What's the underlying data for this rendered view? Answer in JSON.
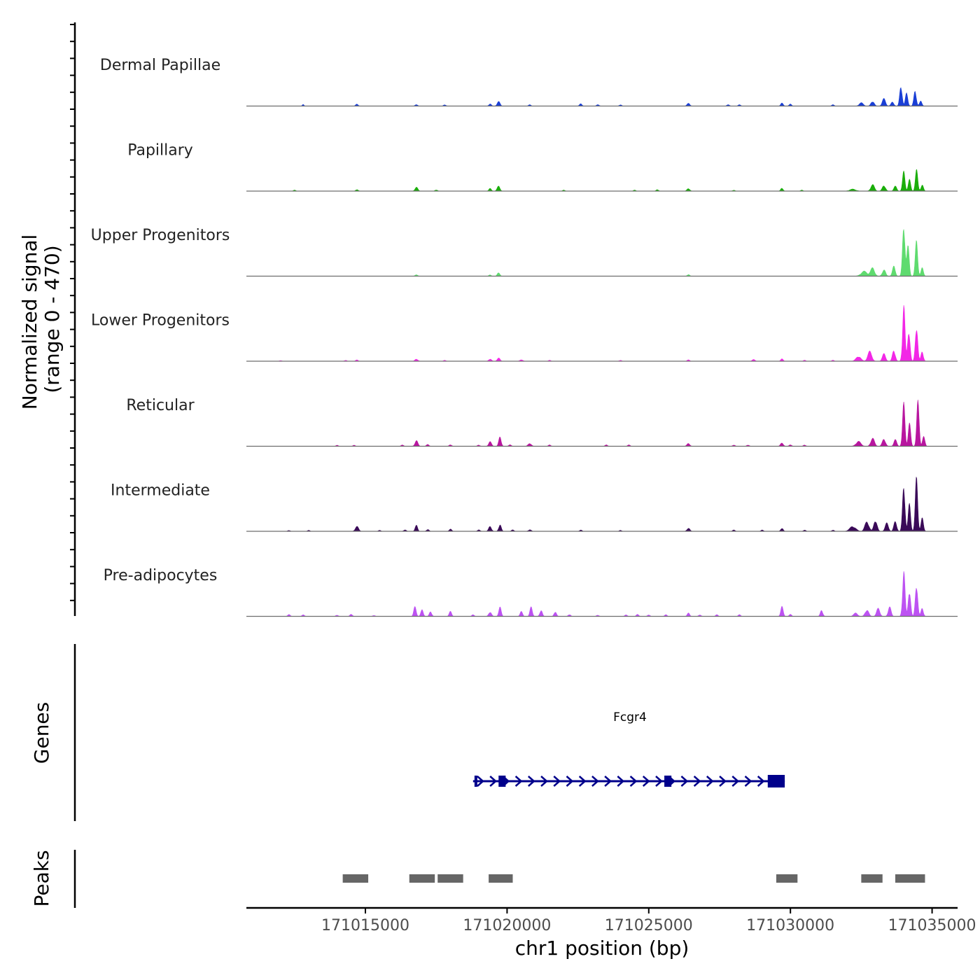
{
  "chart_data": {
    "type": "area",
    "title": "",
    "ylabel_line1": "Normalized signal",
    "ylabel_line2": "(range 0 - 470)",
    "xlabel": "chr1 position (bp)",
    "ylim": [
      0,
      470
    ],
    "xlim": [
      171010800,
      171035900
    ],
    "x_ticks": [
      171015000,
      171020000,
      171025000,
      171030000,
      171035000
    ],
    "x_tick_labels": [
      "171015000",
      "171020000",
      "171025000",
      "171030000",
      "171035000"
    ],
    "series": [
      {
        "name": "Dermal Papillae",
        "color": "#1a3fd6",
        "peaks": [
          [
            171012800,
            10,
            40
          ],
          [
            171014700,
            12,
            60
          ],
          [
            171016800,
            10,
            60
          ],
          [
            171017800,
            8,
            60
          ],
          [
            171019400,
            14,
            60
          ],
          [
            171019700,
            28,
            70
          ],
          [
            171020800,
            8,
            60
          ],
          [
            171022600,
            14,
            60
          ],
          [
            171023200,
            10,
            60
          ],
          [
            171024000,
            8,
            60
          ],
          [
            171026400,
            16,
            70
          ],
          [
            171027800,
            10,
            60
          ],
          [
            171028200,
            8,
            60
          ],
          [
            171029700,
            18,
            60
          ],
          [
            171030000,
            12,
            60
          ],
          [
            171031500,
            8,
            60
          ],
          [
            171032500,
            20,
            100
          ],
          [
            171032900,
            30,
            80
          ],
          [
            171033300,
            45,
            80
          ],
          [
            171033600,
            25,
            70
          ],
          [
            171033900,
            130,
            60
          ],
          [
            171034100,
            80,
            60
          ],
          [
            171034400,
            100,
            60
          ],
          [
            171034600,
            30,
            60
          ]
        ]
      },
      {
        "name": "Papillary",
        "color": "#1aad0a",
        "peaks": [
          [
            171012500,
            6,
            60
          ],
          [
            171014700,
            10,
            60
          ],
          [
            171016800,
            24,
            70
          ],
          [
            171017500,
            8,
            60
          ],
          [
            171019400,
            16,
            60
          ],
          [
            171019700,
            30,
            70
          ],
          [
            171022000,
            6,
            60
          ],
          [
            171024500,
            6,
            60
          ],
          [
            171025300,
            8,
            60
          ],
          [
            171026400,
            16,
            70
          ],
          [
            171028000,
            6,
            60
          ],
          [
            171029700,
            18,
            60
          ],
          [
            171030400,
            6,
            60
          ],
          [
            171032200,
            12,
            150
          ],
          [
            171032900,
            40,
            90
          ],
          [
            171033300,
            35,
            80
          ],
          [
            171033700,
            30,
            70
          ],
          [
            171034000,
            120,
            60
          ],
          [
            171034200,
            70,
            60
          ],
          [
            171034450,
            130,
            60
          ],
          [
            171034650,
            40,
            60
          ]
        ]
      },
      {
        "name": "Upper Progenitors",
        "color": "#5fdb6f",
        "peaks": [
          [
            171016800,
            8,
            70
          ],
          [
            171019400,
            8,
            60
          ],
          [
            171019700,
            24,
            60
          ],
          [
            171026400,
            10,
            60
          ],
          [
            171032600,
            30,
            150
          ],
          [
            171032900,
            50,
            100
          ],
          [
            171033300,
            40,
            80
          ],
          [
            171033650,
            60,
            70
          ],
          [
            171034000,
            340,
            60
          ],
          [
            171034150,
            180,
            60
          ],
          [
            171034450,
            220,
            60
          ],
          [
            171034650,
            50,
            60
          ]
        ]
      },
      {
        "name": "Lower Progenitors",
        "color": "#f227e6",
        "peaks": [
          [
            171012000,
            4,
            60
          ],
          [
            171014300,
            6,
            60
          ],
          [
            171014700,
            8,
            60
          ],
          [
            171016800,
            14,
            70
          ],
          [
            171017800,
            6,
            60
          ],
          [
            171019400,
            14,
            70
          ],
          [
            171019700,
            20,
            70
          ],
          [
            171020500,
            8,
            80
          ],
          [
            171021500,
            6,
            60
          ],
          [
            171024000,
            6,
            60
          ],
          [
            171026400,
            8,
            60
          ],
          [
            171028700,
            10,
            70
          ],
          [
            171029700,
            14,
            60
          ],
          [
            171030500,
            6,
            60
          ],
          [
            171031500,
            6,
            60
          ],
          [
            171032400,
            30,
            120
          ],
          [
            171032800,
            60,
            100
          ],
          [
            171033300,
            45,
            80
          ],
          [
            171033650,
            70,
            70
          ],
          [
            171034000,
            350,
            60
          ],
          [
            171034180,
            200,
            60
          ],
          [
            171034450,
            230,
            60
          ],
          [
            171034650,
            60,
            60
          ]
        ]
      },
      {
        "name": "Reticular",
        "color": "#b8169f",
        "peaks": [
          [
            171014000,
            6,
            60
          ],
          [
            171014600,
            6,
            60
          ],
          [
            171016300,
            8,
            60
          ],
          [
            171016800,
            36,
            70
          ],
          [
            171017200,
            12,
            60
          ],
          [
            171018000,
            10,
            60
          ],
          [
            171019000,
            8,
            60
          ],
          [
            171019400,
            28,
            70
          ],
          [
            171019750,
            60,
            60
          ],
          [
            171020100,
            10,
            60
          ],
          [
            171020800,
            18,
            80
          ],
          [
            171021500,
            8,
            60
          ],
          [
            171023500,
            8,
            60
          ],
          [
            171024300,
            8,
            60
          ],
          [
            171026400,
            18,
            70
          ],
          [
            171028000,
            8,
            60
          ],
          [
            171028500,
            8,
            60
          ],
          [
            171029700,
            20,
            70
          ],
          [
            171030000,
            10,
            60
          ],
          [
            171030500,
            8,
            60
          ],
          [
            171032400,
            30,
            120
          ],
          [
            171032900,
            50,
            90
          ],
          [
            171033300,
            45,
            80
          ],
          [
            171033700,
            40,
            70
          ],
          [
            171034000,
            260,
            60
          ],
          [
            171034200,
            140,
            60
          ],
          [
            171034500,
            270,
            60
          ],
          [
            171034700,
            60,
            60
          ]
        ]
      },
      {
        "name": "Intermediate",
        "color": "#3a0a58",
        "peaks": [
          [
            171012300,
            6,
            60
          ],
          [
            171013000,
            6,
            60
          ],
          [
            171014700,
            30,
            80
          ],
          [
            171015500,
            6,
            60
          ],
          [
            171016400,
            10,
            60
          ],
          [
            171016800,
            36,
            60
          ],
          [
            171017200,
            12,
            60
          ],
          [
            171018000,
            14,
            60
          ],
          [
            171019000,
            10,
            60
          ],
          [
            171019400,
            30,
            70
          ],
          [
            171019750,
            44,
            60
          ],
          [
            171020200,
            10,
            60
          ],
          [
            171020800,
            10,
            70
          ],
          [
            171022600,
            8,
            60
          ],
          [
            171024000,
            6,
            60
          ],
          [
            171026400,
            20,
            70
          ],
          [
            171028000,
            8,
            60
          ],
          [
            171029000,
            8,
            60
          ],
          [
            171029700,
            20,
            60
          ],
          [
            171030500,
            8,
            60
          ],
          [
            171031500,
            8,
            60
          ],
          [
            171032200,
            30,
            150
          ],
          [
            171032700,
            60,
            100
          ],
          [
            171033000,
            70,
            80
          ],
          [
            171033400,
            50,
            80
          ],
          [
            171033700,
            60,
            70
          ],
          [
            171034000,
            300,
            60
          ],
          [
            171034200,
            170,
            60
          ],
          [
            171034450,
            330,
            60
          ],
          [
            171034650,
            80,
            60
          ]
        ]
      },
      {
        "name": "Pre-adipocytes",
        "color": "#bd52f2",
        "peaks": [
          [
            171012300,
            12,
            60
          ],
          [
            171012800,
            10,
            60
          ],
          [
            171014000,
            8,
            60
          ],
          [
            171014500,
            14,
            60
          ],
          [
            171015300,
            6,
            60
          ],
          [
            171016750,
            60,
            60
          ],
          [
            171017000,
            40,
            60
          ],
          [
            171017300,
            30,
            60
          ],
          [
            171018000,
            30,
            60
          ],
          [
            171018800,
            10,
            60
          ],
          [
            171019400,
            28,
            70
          ],
          [
            171019750,
            56,
            60
          ],
          [
            171020500,
            30,
            60
          ],
          [
            171020850,
            60,
            60
          ],
          [
            171021200,
            40,
            60
          ],
          [
            171021700,
            30,
            60
          ],
          [
            171022200,
            12,
            60
          ],
          [
            171023200,
            8,
            60
          ],
          [
            171024200,
            10,
            60
          ],
          [
            171024600,
            12,
            60
          ],
          [
            171025000,
            10,
            60
          ],
          [
            171025600,
            10,
            60
          ],
          [
            171026400,
            20,
            60
          ],
          [
            171026800,
            10,
            60
          ],
          [
            171027400,
            10,
            60
          ],
          [
            171028200,
            10,
            60
          ],
          [
            171029700,
            60,
            60
          ],
          [
            171030000,
            12,
            60
          ],
          [
            171031100,
            40,
            60
          ],
          [
            171032300,
            20,
            100
          ],
          [
            171032700,
            40,
            90
          ],
          [
            171033100,
            50,
            80
          ],
          [
            171033500,
            60,
            70
          ],
          [
            171034000,
            290,
            60
          ],
          [
            171034200,
            170,
            60
          ],
          [
            171034450,
            210,
            60
          ],
          [
            171034650,
            50,
            60
          ]
        ]
      }
    ],
    "genes": {
      "track_label": "Genes",
      "name": "Fcgr4",
      "color": "#00008b",
      "start": 171018800,
      "end": 171029800,
      "strand": "+",
      "exons": [
        [
          171018850,
          171018950
        ],
        [
          171019700,
          171019950
        ],
        [
          171025550,
          171025800
        ],
        [
          171029200,
          171029800
        ]
      ]
    },
    "peaks_track": {
      "track_label": "Peaks",
      "color": "#666666",
      "regions": [
        [
          171014200,
          171015100
        ],
        [
          171016550,
          171017450
        ],
        [
          171017550,
          171018450
        ],
        [
          171019350,
          171020200
        ],
        [
          171029500,
          171030250
        ],
        [
          171032500,
          171033250
        ],
        [
          171033700,
          171034750
        ]
      ]
    }
  }
}
